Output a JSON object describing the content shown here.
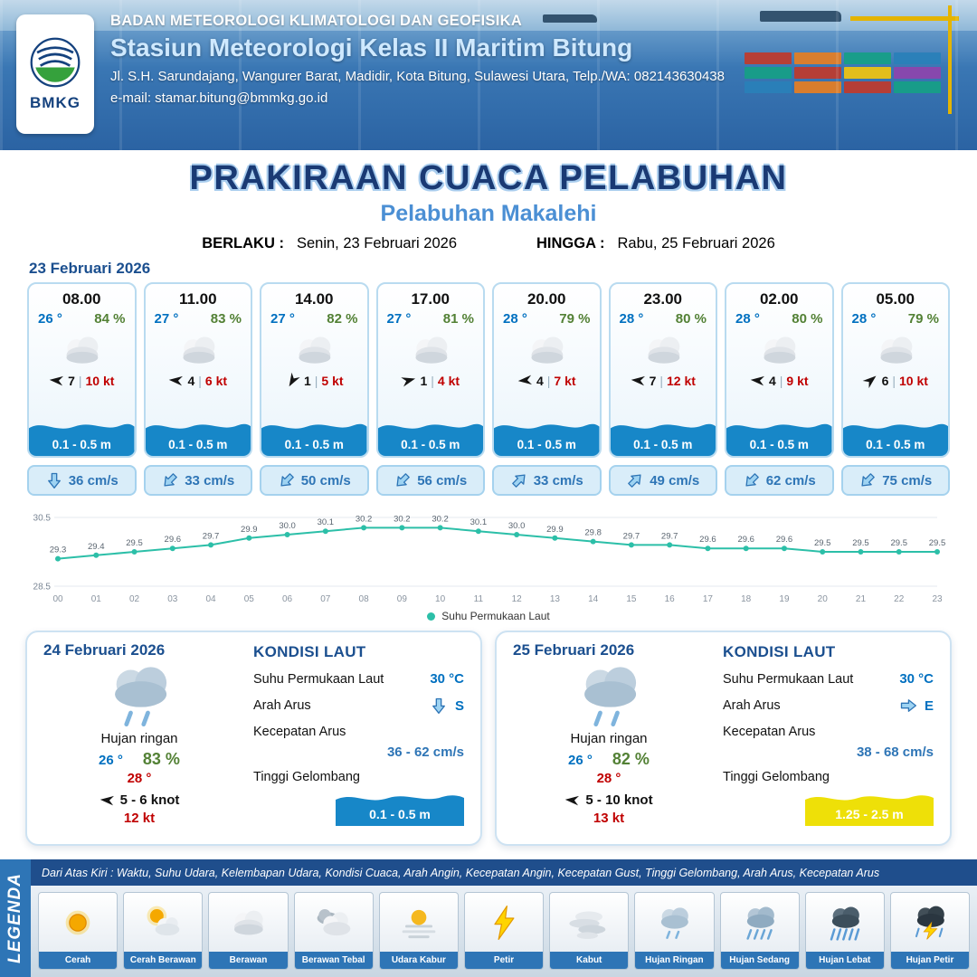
{
  "header": {
    "org": "BADAN METEOROLOGI KLIMATOLOGI DAN GEOFISIKA",
    "station": "Stasiun Meteorologi Kelas II Maritim Bitung",
    "address": "Jl. S.H. Sarundajang, Wangurer Barat, Madidir, Kota Bitung, Sulawesi Utara, Telp./WA: 082143630438",
    "email": "e-mail: stamar.bitung@bmmkg.go.id",
    "logo_text": "BMKG"
  },
  "title": {
    "main": "PRAKIRAAN CUACA PELABUHAN",
    "sub": "Pelabuhan Makalehi",
    "berlaku_label": "BERLAKU :",
    "berlaku_value": "Senin, 23 Februari 2026",
    "hingga_label": "HINGGA :",
    "hingga_value": "Rabu, 25 Februari 2026"
  },
  "misc": {
    "sep": "|"
  },
  "colors": {
    "hourly_wave": "#1787c8",
    "accent_blue": "#2e75b6"
  },
  "day1": {
    "date": "23 Februari 2026",
    "hours": [
      {
        "time": "08.00",
        "temp": "26 °",
        "rh": "84 %",
        "wind_val": "7",
        "wind_kt": "10 kt",
        "wind_rot": 185,
        "wave": "0.1 - 0.5 m",
        "cur": "36 cm/s",
        "cur_rot": 0
      },
      {
        "time": "11.00",
        "temp": "27 °",
        "rh": "83 %",
        "wind_val": "4",
        "wind_kt": "6 kt",
        "wind_rot": 185,
        "wave": "0.1 - 0.5 m",
        "cur": "33 cm/s",
        "cur_rot": 45
      },
      {
        "time": "14.00",
        "temp": "27 °",
        "rh": "82 %",
        "wind_val": "1",
        "wind_kt": "5 kt",
        "wind_rot": 120,
        "wave": "0.1 - 0.5 m",
        "cur": "50 cm/s",
        "cur_rot": 45
      },
      {
        "time": "17.00",
        "temp": "27 °",
        "rh": "81 %",
        "wind_val": "1",
        "wind_kt": "4 kt",
        "wind_rot": 345,
        "wave": "0.1 - 0.5 m",
        "cur": "56 cm/s",
        "cur_rot": 45
      },
      {
        "time": "20.00",
        "temp": "28 °",
        "rh": "79 %",
        "wind_val": "4",
        "wind_kt": "7 kt",
        "wind_rot": 175,
        "wave": "0.1 - 0.5 m",
        "cur": "33 cm/s",
        "cur_rot": 225
      },
      {
        "time": "23.00",
        "temp": "28 °",
        "rh": "80 %",
        "wind_val": "7",
        "wind_kt": "12 kt",
        "wind_rot": 185,
        "wave": "0.1 - 0.5 m",
        "cur": "49 cm/s",
        "cur_rot": 225
      },
      {
        "time": "02.00",
        "temp": "28 °",
        "rh": "80 %",
        "wind_val": "4",
        "wind_kt": "9 kt",
        "wind_rot": 185,
        "wave": "0.1 - 0.5 m",
        "cur": "62 cm/s",
        "cur_rot": 45
      },
      {
        "time": "05.00",
        "temp": "28 °",
        "rh": "79 %",
        "wind_val": "6",
        "wind_kt": "10 kt",
        "wind_rot": 320,
        "wave": "0.1 - 0.5 m",
        "cur": "75 cm/s",
        "cur_rot": 45
      }
    ]
  },
  "chart_data": {
    "type": "line",
    "x_labels": [
      "00",
      "01",
      "02",
      "03",
      "04",
      "05",
      "06",
      "07",
      "08",
      "09",
      "10",
      "11",
      "12",
      "13",
      "14",
      "15",
      "16",
      "17",
      "18",
      "19",
      "20",
      "21",
      "22",
      "23"
    ],
    "values": [
      29.3,
      29.4,
      29.5,
      29.6,
      29.7,
      29.9,
      30.0,
      30.1,
      30.2,
      30.2,
      30.2,
      30.1,
      30.0,
      29.9,
      29.8,
      29.7,
      29.7,
      29.6,
      29.6,
      29.6,
      29.5,
      29.5,
      29.5,
      29.5
    ],
    "ylim": [
      28.5,
      30.5
    ],
    "yticks": [
      "30.5",
      "28.5"
    ],
    "legend": "Suhu Permukaan Laut",
    "color": "#2cbfa8",
    "title": "",
    "xlabel": "",
    "ylabel": ""
  },
  "days": [
    {
      "date": "24 Februari 2026",
      "cond": "Hujan ringan",
      "tmin": "26 °",
      "rh": "83 %",
      "tmax": "28 °",
      "wind": "5 - 6 knot",
      "gust": "12 kt",
      "wind_rot": 185,
      "sea": {
        "title": "KONDISI LAUT",
        "sst_label": "Suhu Permukaan Laut",
        "sst": "30 °C",
        "arus_label": "Arah Arus",
        "arus_dir": "S",
        "arus_rot": 0,
        "kec_label": "Kecepatan Arus",
        "kec": "36 - 62 cm/s",
        "gel_label": "Tinggi Gelombang",
        "gel": "0.1 - 0.5 m",
        "wave_color": "#1787c8"
      }
    },
    {
      "date": "25 Februari 2026",
      "cond": "Hujan ringan",
      "tmin": "26 °",
      "rh": "82 %",
      "tmax": "28 °",
      "wind": "5 - 10 knot",
      "gust": "13 kt",
      "wind_rot": 185,
      "sea": {
        "title": "KONDISI LAUT",
        "sst_label": "Suhu Permukaan Laut",
        "sst": "30 °C",
        "arus_label": "Arah Arus",
        "arus_dir": "E",
        "arus_rot": 270,
        "kec_label": "Kecepatan Arus",
        "kec": "38 - 68 cm/s",
        "gel_label": "Tinggi Gelombang",
        "gel": "1.25 - 2.5 m",
        "wave_color": "#eee008"
      }
    }
  ],
  "legend": {
    "vertical_label": "LEGENDA",
    "caption": "Dari Atas Kiri : Waktu, Suhu Udara, Kelembapan Udara, Kondisi Cuaca, Arah Angin, Kecepatan Angin, Kecepatan Gust, Tinggi Gelombang, Arah Arus, Kecepatan Arus",
    "items": [
      {
        "label": "Cerah",
        "icon": "sun-icon"
      },
      {
        "label": "Cerah Berawan",
        "icon": "sun-cloud-icon"
      },
      {
        "label": "Berawan",
        "icon": "cloud-icon"
      },
      {
        "label": "Berawan Tebal",
        "icon": "clouds-icon"
      },
      {
        "label": "Udara Kabur",
        "icon": "haze-icon"
      },
      {
        "label": "Petir",
        "icon": "lightning-icon"
      },
      {
        "label": "Kabut",
        "icon": "fog-icon"
      },
      {
        "label": "Hujan Ringan",
        "icon": "rain-light-icon"
      },
      {
        "label": "Hujan Sedang",
        "icon": "rain-mid-icon"
      },
      {
        "label": "Hujan Lebat",
        "icon": "rain-heavy-icon"
      },
      {
        "label": "Hujan Petir",
        "icon": "storm-icon"
      }
    ]
  }
}
